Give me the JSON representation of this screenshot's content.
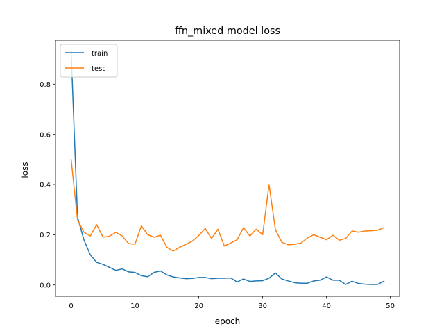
{
  "chart_data": {
    "type": "line",
    "title": "ffn_mixed model loss",
    "xlabel": "epoch",
    "ylabel": "loss",
    "xlim": [
      -2.45,
      51.45
    ],
    "ylim": [
      -0.045,
      0.975
    ],
    "xticks": [
      0,
      10,
      20,
      30,
      40,
      50
    ],
    "xtick_labels": [
      "0",
      "10",
      "20",
      "30",
      "40",
      "50"
    ],
    "yticks": [
      0.0,
      0.2,
      0.4,
      0.6,
      0.8
    ],
    "ytick_labels": [
      "0.0",
      "0.2",
      "0.4",
      "0.6",
      "0.8"
    ],
    "grid": false,
    "legend": {
      "position": "top-left"
    },
    "x": [
      0,
      1,
      2,
      3,
      4,
      5,
      6,
      7,
      8,
      9,
      10,
      11,
      12,
      13,
      14,
      15,
      16,
      17,
      18,
      19,
      20,
      21,
      22,
      23,
      24,
      25,
      26,
      27,
      28,
      29,
      30,
      31,
      32,
      33,
      34,
      35,
      36,
      37,
      38,
      39,
      40,
      41,
      42,
      43,
      44,
      45,
      46,
      47,
      48,
      49
    ],
    "series": [
      {
        "name": "train",
        "color": "#1f77b4",
        "values": [
          0.93,
          0.27,
          0.18,
          0.12,
          0.09,
          0.082,
          0.07,
          0.058,
          0.064,
          0.052,
          0.05,
          0.037,
          0.033,
          0.05,
          0.056,
          0.04,
          0.032,
          0.028,
          0.025,
          0.026,
          0.03,
          0.03,
          0.025,
          0.027,
          0.027,
          0.028,
          0.012,
          0.024,
          0.014,
          0.016,
          0.017,
          0.027,
          0.048,
          0.024,
          0.016,
          0.009,
          0.007,
          0.007,
          0.016,
          0.019,
          0.032,
          0.019,
          0.019,
          0.002,
          0.015,
          0.006,
          0.003,
          0.002,
          0.002,
          0.015
        ]
      },
      {
        "name": "test",
        "color": "#ff7f0e",
        "values": [
          0.5,
          0.26,
          0.21,
          0.195,
          0.24,
          0.19,
          0.194,
          0.21,
          0.195,
          0.165,
          0.162,
          0.235,
          0.2,
          0.19,
          0.198,
          0.15,
          0.135,
          0.15,
          0.162,
          0.175,
          0.197,
          0.225,
          0.185,
          0.222,
          0.155,
          0.167,
          0.18,
          0.228,
          0.195,
          0.222,
          0.2,
          0.4,
          0.22,
          0.17,
          0.16,
          0.162,
          0.167,
          0.187,
          0.2,
          0.19,
          0.18,
          0.198,
          0.178,
          0.185,
          0.215,
          0.21,
          0.215,
          0.216,
          0.218,
          0.228
        ]
      }
    ]
  }
}
